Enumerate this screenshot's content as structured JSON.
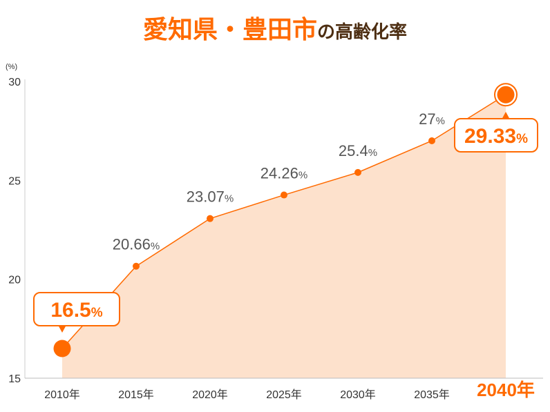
{
  "title": {
    "highlight": "愛知県・豊田市",
    "rest": "の高齢化率"
  },
  "colors": {
    "accent": "#ff6a00",
    "fill": "#fde1cc",
    "title_sub": "#4d2e12",
    "label": "#555555"
  },
  "chart_data": {
    "type": "area",
    "title": "愛知県・豊田市の高齢化率",
    "ylabel": "(%)",
    "ylim": [
      15,
      30
    ],
    "yticks": [
      15,
      20,
      25,
      30
    ],
    "categories": [
      "2010年",
      "2015年",
      "2020年",
      "2025年",
      "2030年",
      "2035年",
      "2040年"
    ],
    "values": [
      16.5,
      20.66,
      23.07,
      24.26,
      25.4,
      27,
      29.33
    ],
    "value_labels": [
      "16.5",
      "20.66",
      "23.07",
      "24.26",
      "25.4",
      "27",
      "29.33"
    ],
    "value_unit": "%",
    "highlighted": [
      "2010年",
      "2040年"
    ],
    "grid": false
  }
}
